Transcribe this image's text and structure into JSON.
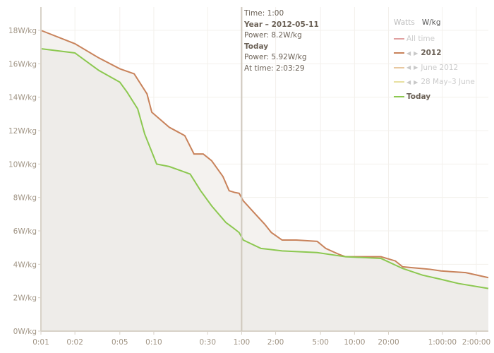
{
  "chart_data": {
    "type": "area",
    "xscale": "log",
    "xlim_seconds": [
      1,
      9200
    ],
    "ylim": [
      0,
      18.5
    ],
    "grid": true,
    "legend_position": "top-right",
    "y_ticks": [
      "0W/kg",
      "2W/kg",
      "4W/kg",
      "6W/kg",
      "8W/kg",
      "10W/kg",
      "12W/kg",
      "14W/kg",
      "16W/kg",
      "18W/kg"
    ],
    "y_tick_values": [
      0,
      2,
      4,
      6,
      8,
      10,
      12,
      14,
      16,
      18
    ],
    "x_ticks": [
      "0:01",
      "0:02",
      "0:05",
      "0:10",
      "0:30",
      "1:00",
      "2:00",
      "5:00",
      "10:00",
      "20:00",
      "1:00:00",
      "2:00:00"
    ],
    "x_tick_seconds": [
      1,
      2,
      5,
      10,
      30,
      60,
      120,
      300,
      600,
      1200,
      3600,
      7200
    ],
    "series": [
      {
        "name": "2012",
        "color": "#c8825a",
        "x": [
          1,
          2,
          3.26,
          5,
          6.7,
          8.7,
          9.6,
          13.7,
          18.8,
          22.7,
          27.4,
          32.5,
          41,
          46.5,
          52,
          57,
          62,
          77,
          96,
          110,
          137,
          183,
          280,
          334,
          435,
          500,
          1030,
          1380,
          1600,
          2800,
          3500,
          5800,
          9200
        ],
        "values": [
          18,
          17.2,
          16.35,
          15.7,
          15.4,
          14.2,
          13.1,
          12.2,
          11.7,
          10.6,
          10.6,
          10.2,
          9.25,
          8.4,
          8.3,
          8.25,
          7.8,
          7.1,
          6.4,
          5.9,
          5.45,
          5.45,
          5.37,
          4.95,
          4.6,
          4.45,
          4.45,
          4.2,
          3.85,
          3.7,
          3.6,
          3.5,
          3.2
        ]
      },
      {
        "name": "Today",
        "color": "#8cc850",
        "x": [
          1,
          2,
          3.26,
          5,
          5.8,
          7.2,
          8.3,
          10.6,
          13.7,
          21,
          26,
          32.5,
          43.5,
          50,
          57,
          62,
          89,
          137,
          280,
          500,
          1030,
          1600,
          2400,
          3500,
          5000,
          9200
        ],
        "values": [
          16.9,
          16.65,
          15.6,
          14.9,
          14.3,
          13.3,
          11.8,
          10.0,
          9.85,
          9.4,
          8.4,
          7.5,
          6.5,
          6.2,
          5.9,
          5.45,
          4.95,
          4.8,
          4.7,
          4.45,
          4.35,
          3.75,
          3.35,
          3.1,
          2.85,
          2.55
        ]
      }
    ],
    "cursor_seconds": 60
  },
  "tooltip": {
    "time": "Time: 1:00",
    "year": "Year – 2012-05-11",
    "year_power": "Power: 8.2W/kg",
    "today": "Today",
    "today_power": "Power: 5.92W/kg",
    "at_time": "At time: 2:03:29"
  },
  "legend": {
    "units": [
      "Watts",
      "W/kg"
    ],
    "selected_unit": "W/kg",
    "items": [
      {
        "label": "All time",
        "color": "#e0a0a0",
        "active": false,
        "arrows": false
      },
      {
        "label": "2012",
        "color": "#c8825a",
        "active": true,
        "arrows": true
      },
      {
        "label": "June 2012",
        "color": "#e8c8a0",
        "active": false,
        "arrows": true
      },
      {
        "label": "28 May–3 June",
        "color": "#e8e0a0",
        "active": false,
        "arrows": true
      },
      {
        "label": "Today",
        "color": "#8cc850",
        "active": true,
        "arrows": false
      }
    ]
  }
}
